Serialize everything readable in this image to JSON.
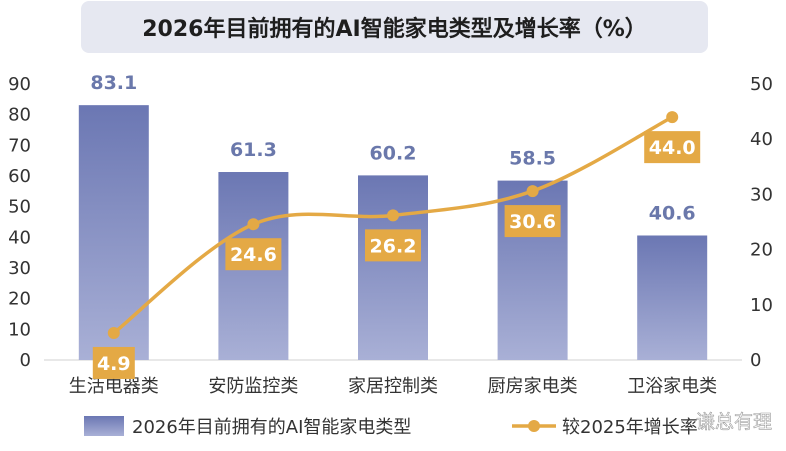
{
  "chart_data": {
    "type": "bar+line",
    "title": "2026年目前拥有的AI智能家电类型及增长率（%）",
    "categories": [
      "生活电器类",
      "安防监控类",
      "家居控制类",
      "厨房家电类",
      "卫浴家电类"
    ],
    "series": [
      {
        "name": "2026年目前拥有的AI智能家电类型",
        "type": "bar",
        "axis": "left",
        "values": [
          83.1,
          61.3,
          60.2,
          58.5,
          40.6
        ],
        "labels": [
          "83.1",
          "61.3",
          "60.2",
          "58.5",
          "40.6"
        ]
      },
      {
        "name": "较2025年增长率",
        "type": "line",
        "axis": "right",
        "values": [
          4.9,
          24.6,
          26.2,
          30.6,
          44.0
        ],
        "labels": [
          "4.9",
          "24.6",
          "26.2",
          "30.6",
          "44.0"
        ]
      }
    ],
    "left_axis": {
      "ticks": [
        "0",
        "10",
        "20",
        "30",
        "40",
        "50",
        "60",
        "70",
        "80",
        "90"
      ],
      "range": [
        0,
        90
      ]
    },
    "right_axis": {
      "ticks": [
        "0",
        "10",
        "20",
        "30",
        "40",
        "50"
      ],
      "range": [
        0,
        50
      ]
    },
    "legend_position": "bottom",
    "colors": {
      "bar_top": "#6b77b3",
      "bar_bottom": "#a9b0d6",
      "line": "#e4a945",
      "bar_label": "#6a78ab",
      "title_bg": "#e6e8f1"
    }
  },
  "watermark": "谦总有理"
}
